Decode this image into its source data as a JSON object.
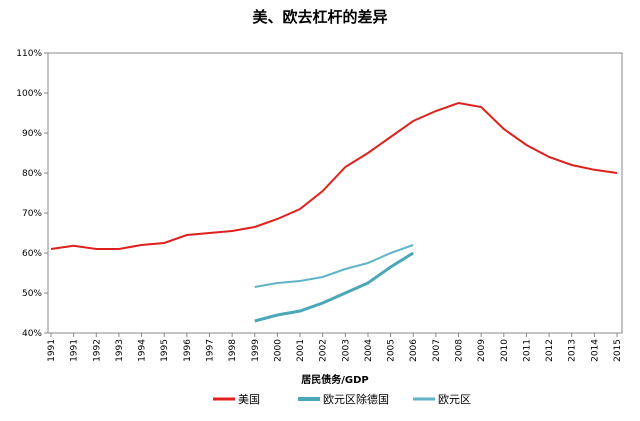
{
  "chart_data": {
    "type": "line",
    "title": "美、欧去杠杆的差异",
    "x_label": "居民债务/GDP",
    "categories": [
      "1991",
      "1991",
      "1992",
      "1993",
      "1994",
      "1995",
      "1996",
      "1997",
      "1998",
      "1999",
      "2000",
      "2001",
      "2002",
      "2003",
      "2004",
      "2005",
      "2006",
      "2007",
      "2008",
      "2009",
      "2010",
      "2011",
      "2012",
      "2013",
      "2014",
      "2015"
    ],
    "series": [
      {
        "name": "美国",
        "color": "#e0201c",
        "width": 2,
        "values": [
          61,
          61.8,
          61,
          61,
          62,
          62.5,
          64.5,
          65,
          65.5,
          66.5,
          68.5,
          71,
          75.5,
          81.5,
          85,
          89,
          93,
          95.5,
          97.5,
          96.5,
          91,
          87,
          84,
          82,
          80.8,
          80
        ]
      },
      {
        "name": "欧元区除德国",
        "color": "#4aa7b8",
        "width": 3,
        "values": [
          null,
          null,
          null,
          null,
          null,
          null,
          null,
          null,
          null,
          43,
          44.5,
          45.5,
          47.5,
          50,
          52.5,
          56.5,
          60,
          null,
          null,
          null,
          null,
          null,
          null,
          null,
          null,
          null
        ]
      },
      {
        "name": "欧元区",
        "color": "#5fb4c8",
        "width": 2,
        "values": [
          null,
          null,
          null,
          null,
          null,
          null,
          null,
          null,
          null,
          51.5,
          52.5,
          53,
          54,
          56,
          57.5,
          60,
          62,
          null,
          null,
          null,
          null,
          null,
          null,
          null,
          null,
          null
        ]
      }
    ],
    "ylim": [
      40,
      110
    ],
    "yticks": [
      {
        "value": 40,
        "label": "40%"
      },
      {
        "value": 50,
        "label": "50%"
      },
      {
        "value": 60,
        "label": "60%"
      },
      {
        "value": 70,
        "label": "70%"
      },
      {
        "value": 80,
        "label": "80%"
      },
      {
        "value": 90,
        "label": "90%"
      },
      {
        "value": 100,
        "label": "100%"
      },
      {
        "value": 110,
        "label": "110%"
      }
    ]
  }
}
